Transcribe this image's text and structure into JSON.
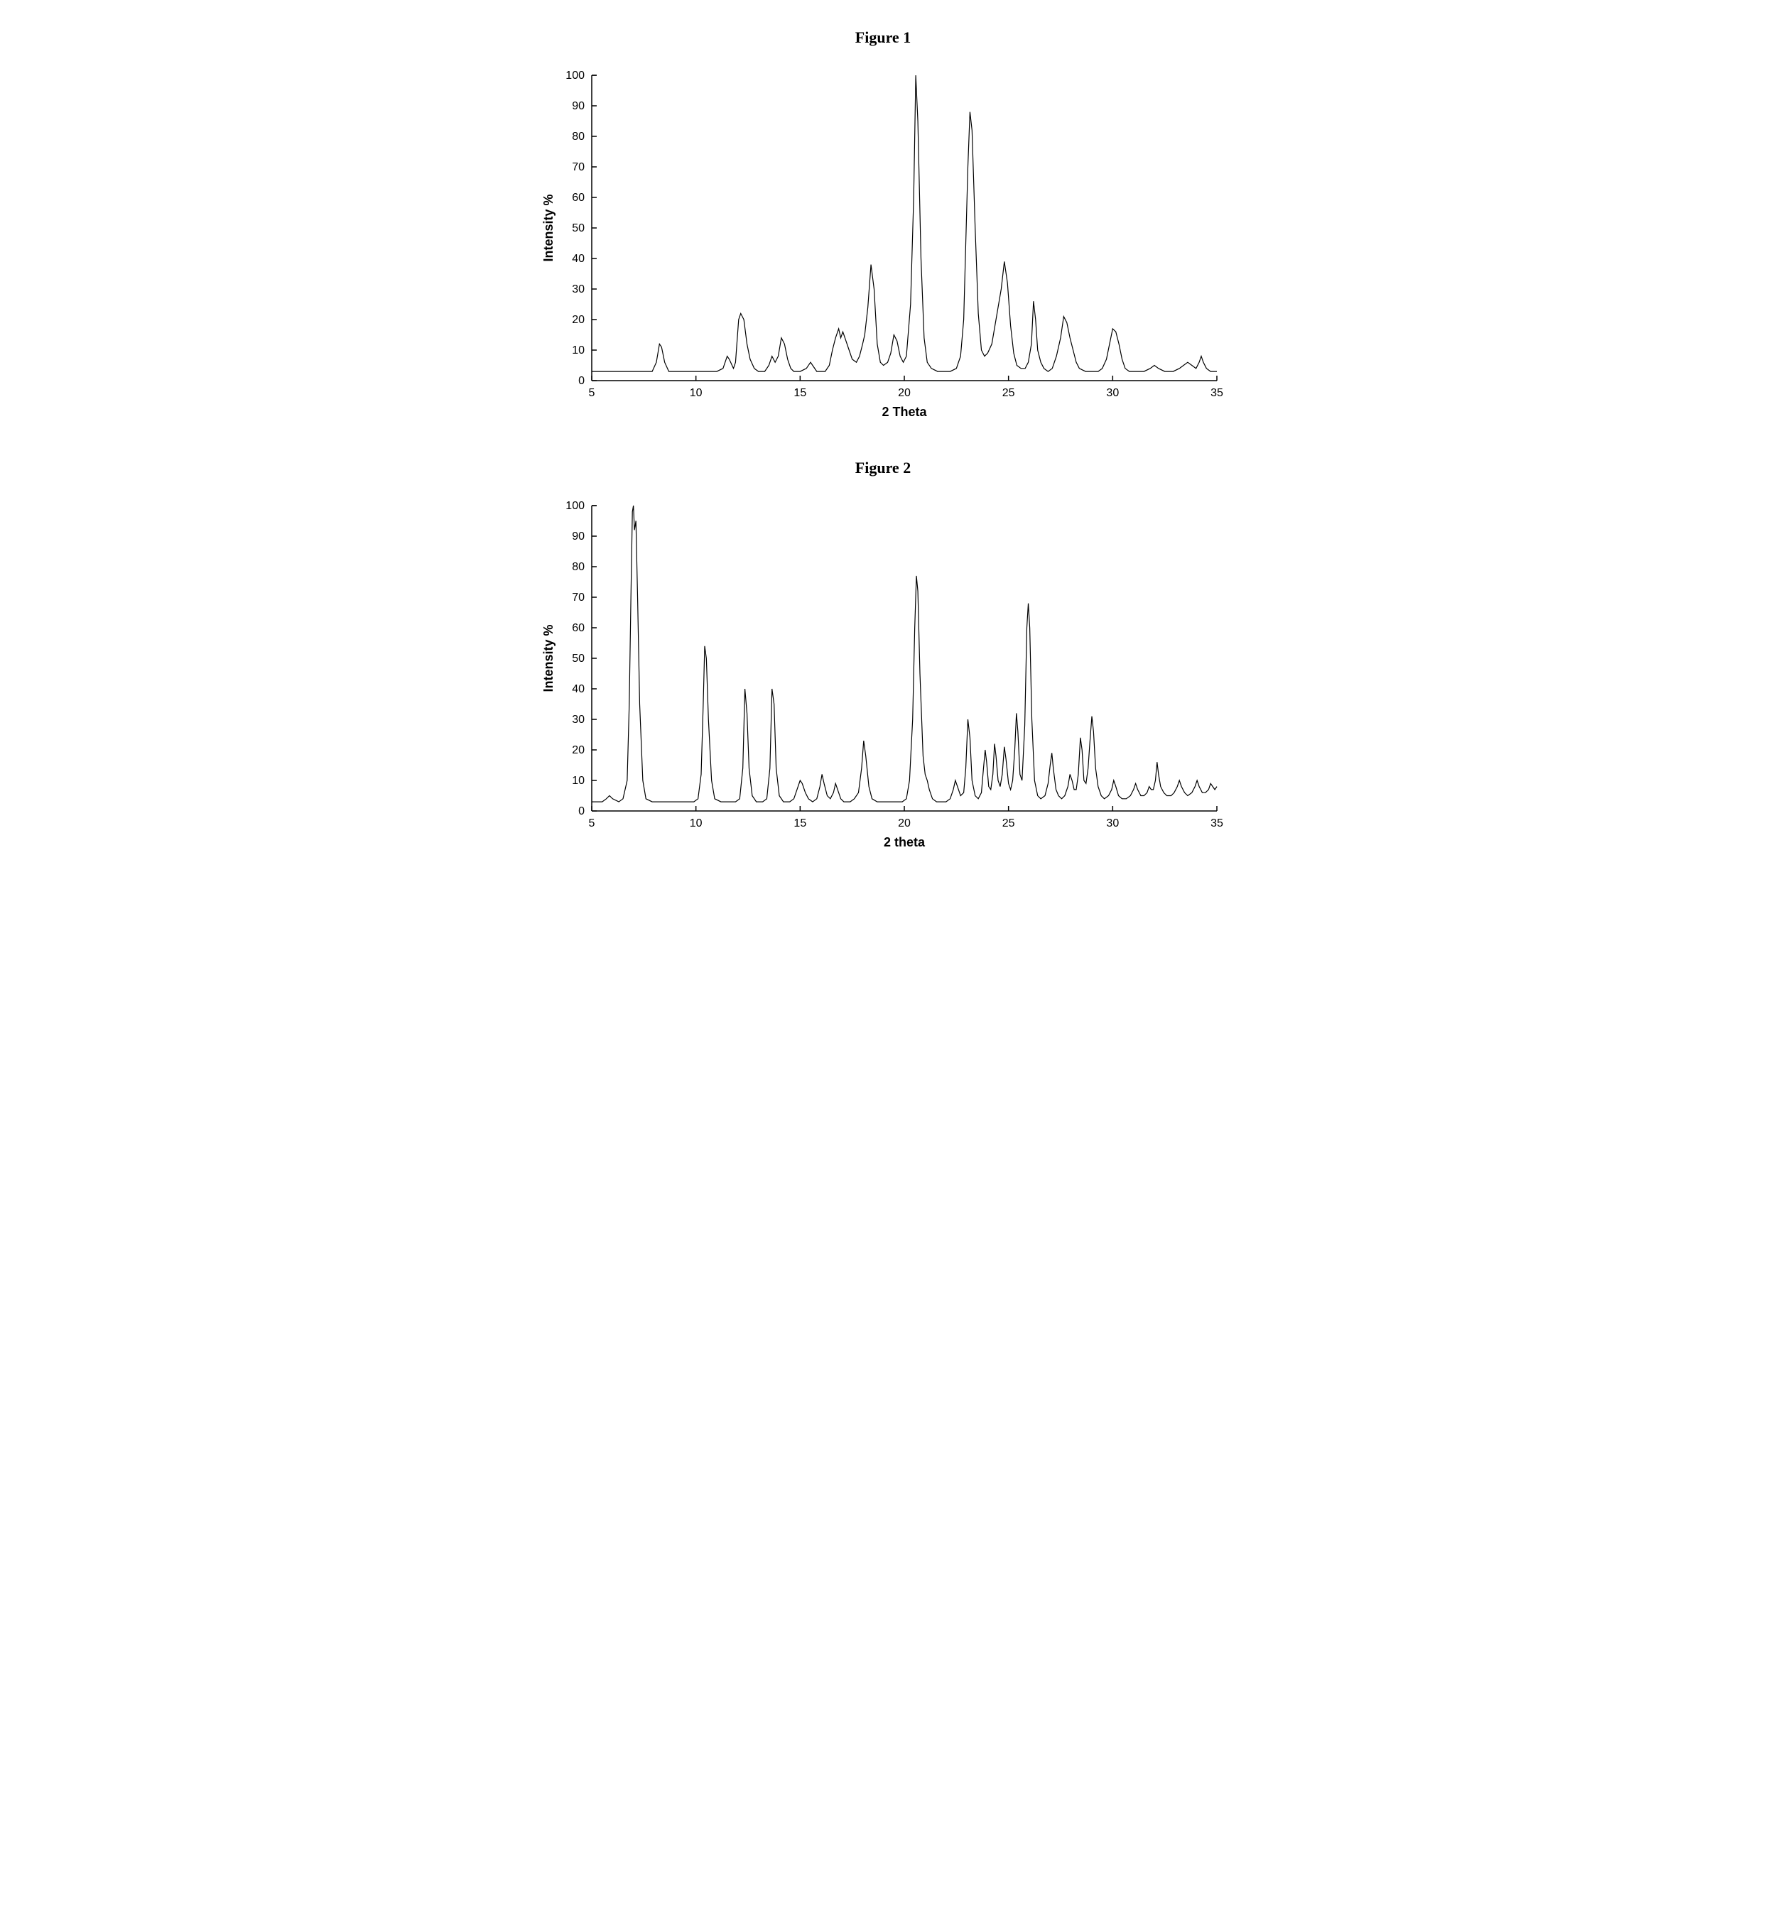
{
  "figures": [
    {
      "title": "Figure 1",
      "type": "line",
      "xlabel": "2 Theta",
      "ylabel": "Intensity %",
      "title_fontsize": 22,
      "label_fontsize": 18,
      "tick_fontsize": 16,
      "xlim": [
        5,
        35
      ],
      "ylim": [
        0,
        100
      ],
      "xtick_step": 5,
      "ytick_step": 10,
      "background_color": "#ffffff",
      "line_color": "#000000",
      "line_width": 1.2,
      "data": [
        [
          5.0,
          3
        ],
        [
          5.5,
          3
        ],
        [
          6.0,
          3
        ],
        [
          6.5,
          3
        ],
        [
          7.0,
          3
        ],
        [
          7.5,
          3
        ],
        [
          7.9,
          3
        ],
        [
          8.1,
          6
        ],
        [
          8.25,
          12
        ],
        [
          8.35,
          11
        ],
        [
          8.5,
          6
        ],
        [
          8.7,
          3
        ],
        [
          9.0,
          3
        ],
        [
          9.5,
          3
        ],
        [
          10.0,
          3
        ],
        [
          10.5,
          3
        ],
        [
          11.0,
          3
        ],
        [
          11.3,
          4
        ],
        [
          11.5,
          8
        ],
        [
          11.6,
          7
        ],
        [
          11.8,
          4
        ],
        [
          11.9,
          6
        ],
        [
          12.05,
          20
        ],
        [
          12.15,
          22
        ],
        [
          12.3,
          20
        ],
        [
          12.45,
          12
        ],
        [
          12.6,
          7
        ],
        [
          12.8,
          4
        ],
        [
          13.0,
          3
        ],
        [
          13.3,
          3
        ],
        [
          13.5,
          5
        ],
        [
          13.65,
          8
        ],
        [
          13.8,
          6
        ],
        [
          13.95,
          8
        ],
        [
          14.1,
          14
        ],
        [
          14.25,
          12
        ],
        [
          14.4,
          7
        ],
        [
          14.55,
          4
        ],
        [
          14.7,
          3
        ],
        [
          15.0,
          3
        ],
        [
          15.3,
          4
        ],
        [
          15.5,
          6
        ],
        [
          15.6,
          5
        ],
        [
          15.8,
          3
        ],
        [
          16.0,
          3
        ],
        [
          16.2,
          3
        ],
        [
          16.4,
          5
        ],
        [
          16.55,
          10
        ],
        [
          16.7,
          14
        ],
        [
          16.85,
          17
        ],
        [
          16.95,
          14
        ],
        [
          17.05,
          16
        ],
        [
          17.2,
          13
        ],
        [
          17.35,
          10
        ],
        [
          17.5,
          7
        ],
        [
          17.7,
          6
        ],
        [
          17.85,
          8
        ],
        [
          18.0,
          12
        ],
        [
          18.1,
          15
        ],
        [
          18.25,
          24
        ],
        [
          18.4,
          38
        ],
        [
          18.55,
          30
        ],
        [
          18.7,
          12
        ],
        [
          18.85,
          6
        ],
        [
          19.0,
          5
        ],
        [
          19.2,
          6
        ],
        [
          19.35,
          9
        ],
        [
          19.5,
          15
        ],
        [
          19.65,
          13
        ],
        [
          19.8,
          8
        ],
        [
          19.95,
          6
        ],
        [
          20.1,
          8
        ],
        [
          20.3,
          25
        ],
        [
          20.45,
          60
        ],
        [
          20.55,
          100
        ],
        [
          20.65,
          85
        ],
        [
          20.8,
          40
        ],
        [
          20.95,
          14
        ],
        [
          21.1,
          6
        ],
        [
          21.3,
          4
        ],
        [
          21.6,
          3
        ],
        [
          21.9,
          3
        ],
        [
          22.2,
          3
        ],
        [
          22.5,
          4
        ],
        [
          22.7,
          8
        ],
        [
          22.85,
          20
        ],
        [
          22.95,
          45
        ],
        [
          23.05,
          70
        ],
        [
          23.15,
          88
        ],
        [
          23.25,
          82
        ],
        [
          23.4,
          50
        ],
        [
          23.55,
          22
        ],
        [
          23.7,
          10
        ],
        [
          23.85,
          8
        ],
        [
          24.0,
          9
        ],
        [
          24.2,
          12
        ],
        [
          24.35,
          18
        ],
        [
          24.5,
          24
        ],
        [
          24.65,
          30
        ],
        [
          24.8,
          39
        ],
        [
          24.95,
          32
        ],
        [
          25.1,
          18
        ],
        [
          25.25,
          9
        ],
        [
          25.4,
          5
        ],
        [
          25.6,
          4
        ],
        [
          25.8,
          4
        ],
        [
          25.95,
          6
        ],
        [
          26.1,
          12
        ],
        [
          26.2,
          26
        ],
        [
          26.3,
          20
        ],
        [
          26.4,
          10
        ],
        [
          26.55,
          6
        ],
        [
          26.7,
          4
        ],
        [
          26.9,
          3
        ],
        [
          27.1,
          4
        ],
        [
          27.3,
          8
        ],
        [
          27.5,
          14
        ],
        [
          27.65,
          21
        ],
        [
          27.8,
          19
        ],
        [
          27.95,
          14
        ],
        [
          28.1,
          10
        ],
        [
          28.25,
          6
        ],
        [
          28.4,
          4
        ],
        [
          28.7,
          3
        ],
        [
          29.0,
          3
        ],
        [
          29.3,
          3
        ],
        [
          29.5,
          4
        ],
        [
          29.7,
          7
        ],
        [
          29.85,
          12
        ],
        [
          30.0,
          17
        ],
        [
          30.15,
          16
        ],
        [
          30.3,
          12
        ],
        [
          30.45,
          7
        ],
        [
          30.6,
          4
        ],
        [
          30.8,
          3
        ],
        [
          31.2,
          3
        ],
        [
          31.5,
          3
        ],
        [
          31.8,
          4
        ],
        [
          32.0,
          5
        ],
        [
          32.2,
          4
        ],
        [
          32.5,
          3
        ],
        [
          32.9,
          3
        ],
        [
          33.2,
          4
        ],
        [
          33.4,
          5
        ],
        [
          33.6,
          6
        ],
        [
          33.8,
          5
        ],
        [
          34.0,
          4
        ],
        [
          34.15,
          6
        ],
        [
          34.25,
          8
        ],
        [
          34.35,
          6
        ],
        [
          34.5,
          4
        ],
        [
          34.7,
          3
        ],
        [
          35.0,
          3
        ]
      ]
    },
    {
      "title": "Figure 2",
      "type": "line",
      "xlabel": "2 theta",
      "ylabel": "Intensity %",
      "title_fontsize": 22,
      "label_fontsize": 18,
      "tick_fontsize": 16,
      "xlim": [
        5,
        35
      ],
      "ylim": [
        0,
        100
      ],
      "xtick_step": 5,
      "ytick_step": 10,
      "background_color": "#ffffff",
      "line_color": "#000000",
      "line_width": 1.2,
      "data": [
        [
          5.0,
          3
        ],
        [
          5.3,
          3
        ],
        [
          5.5,
          3
        ],
        [
          5.7,
          4
        ],
        [
          5.85,
          5
        ],
        [
          6.0,
          4
        ],
        [
          6.3,
          3
        ],
        [
          6.5,
          4
        ],
        [
          6.7,
          10
        ],
        [
          6.8,
          35
        ],
        [
          6.88,
          70
        ],
        [
          6.95,
          98
        ],
        [
          7.0,
          100
        ],
        [
          7.05,
          92
        ],
        [
          7.12,
          95
        ],
        [
          7.2,
          70
        ],
        [
          7.3,
          35
        ],
        [
          7.45,
          10
        ],
        [
          7.6,
          4
        ],
        [
          7.9,
          3
        ],
        [
          8.3,
          3
        ],
        [
          8.7,
          3
        ],
        [
          9.1,
          3
        ],
        [
          9.5,
          3
        ],
        [
          9.9,
          3
        ],
        [
          10.1,
          4
        ],
        [
          10.25,
          12
        ],
        [
          10.35,
          35
        ],
        [
          10.42,
          54
        ],
        [
          10.5,
          50
        ],
        [
          10.6,
          30
        ],
        [
          10.75,
          10
        ],
        [
          10.9,
          4
        ],
        [
          11.2,
          3
        ],
        [
          11.6,
          3
        ],
        [
          11.9,
          3
        ],
        [
          12.1,
          4
        ],
        [
          12.25,
          14
        ],
        [
          12.35,
          40
        ],
        [
          12.45,
          32
        ],
        [
          12.55,
          14
        ],
        [
          12.7,
          5
        ],
        [
          12.9,
          3
        ],
        [
          13.2,
          3
        ],
        [
          13.4,
          4
        ],
        [
          13.55,
          14
        ],
        [
          13.65,
          40
        ],
        [
          13.75,
          35
        ],
        [
          13.85,
          14
        ],
        [
          14.0,
          5
        ],
        [
          14.2,
          3
        ],
        [
          14.5,
          3
        ],
        [
          14.7,
          4
        ],
        [
          14.85,
          7
        ],
        [
          15.0,
          10
        ],
        [
          15.1,
          9
        ],
        [
          15.25,
          6
        ],
        [
          15.4,
          4
        ],
        [
          15.6,
          3
        ],
        [
          15.8,
          4
        ],
        [
          15.95,
          8
        ],
        [
          16.05,
          12
        ],
        [
          16.15,
          9
        ],
        [
          16.3,
          5
        ],
        [
          16.45,
          4
        ],
        [
          16.6,
          6
        ],
        [
          16.7,
          9
        ],
        [
          16.8,
          7
        ],
        [
          16.95,
          4
        ],
        [
          17.1,
          3
        ],
        [
          17.4,
          3
        ],
        [
          17.6,
          4
        ],
        [
          17.8,
          6
        ],
        [
          17.95,
          14
        ],
        [
          18.05,
          23
        ],
        [
          18.15,
          18
        ],
        [
          18.3,
          8
        ],
        [
          18.45,
          4
        ],
        [
          18.7,
          3
        ],
        [
          19.0,
          3
        ],
        [
          19.3,
          3
        ],
        [
          19.6,
          3
        ],
        [
          19.9,
          3
        ],
        [
          20.1,
          4
        ],
        [
          20.25,
          10
        ],
        [
          20.4,
          30
        ],
        [
          20.5,
          60
        ],
        [
          20.58,
          77
        ],
        [
          20.65,
          72
        ],
        [
          20.75,
          45
        ],
        [
          20.9,
          18
        ],
        [
          21.0,
          12
        ],
        [
          21.1,
          10
        ],
        [
          21.2,
          7
        ],
        [
          21.35,
          4
        ],
        [
          21.55,
          3
        ],
        [
          21.8,
          3
        ],
        [
          22.0,
          3
        ],
        [
          22.2,
          4
        ],
        [
          22.35,
          7
        ],
        [
          22.45,
          10
        ],
        [
          22.55,
          8
        ],
        [
          22.7,
          5
        ],
        [
          22.85,
          6
        ],
        [
          22.95,
          14
        ],
        [
          23.05,
          30
        ],
        [
          23.15,
          24
        ],
        [
          23.25,
          10
        ],
        [
          23.4,
          5
        ],
        [
          23.55,
          4
        ],
        [
          23.7,
          6
        ],
        [
          23.8,
          14
        ],
        [
          23.88,
          20
        ],
        [
          23.95,
          16
        ],
        [
          24.05,
          8
        ],
        [
          24.15,
          7
        ],
        [
          24.25,
          12
        ],
        [
          24.33,
          22
        ],
        [
          24.4,
          18
        ],
        [
          24.5,
          10
        ],
        [
          24.6,
          8
        ],
        [
          24.7,
          12
        ],
        [
          24.8,
          21
        ],
        [
          24.88,
          17
        ],
        [
          25.0,
          9
        ],
        [
          25.1,
          7
        ],
        [
          25.2,
          10
        ],
        [
          25.3,
          20
        ],
        [
          25.38,
          32
        ],
        [
          25.45,
          26
        ],
        [
          25.55,
          12
        ],
        [
          25.65,
          10
        ],
        [
          25.78,
          28
        ],
        [
          25.88,
          60
        ],
        [
          25.95,
          68
        ],
        [
          26.02,
          60
        ],
        [
          26.12,
          30
        ],
        [
          26.25,
          10
        ],
        [
          26.4,
          5
        ],
        [
          26.55,
          4
        ],
        [
          26.75,
          5
        ],
        [
          26.9,
          9
        ],
        [
          27.0,
          15
        ],
        [
          27.08,
          19
        ],
        [
          27.15,
          14
        ],
        [
          27.28,
          7
        ],
        [
          27.4,
          5
        ],
        [
          27.55,
          4
        ],
        [
          27.7,
          5
        ],
        [
          27.85,
          8
        ],
        [
          27.95,
          12
        ],
        [
          28.05,
          10
        ],
        [
          28.15,
          7
        ],
        [
          28.25,
          7
        ],
        [
          28.35,
          12
        ],
        [
          28.45,
          24
        ],
        [
          28.53,
          20
        ],
        [
          28.62,
          10
        ],
        [
          28.72,
          9
        ],
        [
          28.82,
          14
        ],
        [
          28.9,
          22
        ],
        [
          29.0,
          31
        ],
        [
          29.08,
          26
        ],
        [
          29.18,
          14
        ],
        [
          29.3,
          8
        ],
        [
          29.45,
          5
        ],
        [
          29.6,
          4
        ],
        [
          29.8,
          5
        ],
        [
          29.95,
          7
        ],
        [
          30.05,
          10
        ],
        [
          30.15,
          8
        ],
        [
          30.28,
          5
        ],
        [
          30.45,
          4
        ],
        [
          30.65,
          4
        ],
        [
          30.85,
          5
        ],
        [
          31.0,
          7
        ],
        [
          31.1,
          9
        ],
        [
          31.2,
          7
        ],
        [
          31.35,
          5
        ],
        [
          31.5,
          5
        ],
        [
          31.65,
          6
        ],
        [
          31.75,
          8
        ],
        [
          31.85,
          7
        ],
        [
          31.95,
          7
        ],
        [
          32.05,
          10
        ],
        [
          32.13,
          16
        ],
        [
          32.2,
          12
        ],
        [
          32.3,
          8
        ],
        [
          32.45,
          6
        ],
        [
          32.6,
          5
        ],
        [
          32.8,
          5
        ],
        [
          32.95,
          6
        ],
        [
          33.1,
          8
        ],
        [
          33.2,
          10
        ],
        [
          33.3,
          8
        ],
        [
          33.45,
          6
        ],
        [
          33.6,
          5
        ],
        [
          33.8,
          6
        ],
        [
          33.95,
          8
        ],
        [
          34.05,
          10
        ],
        [
          34.15,
          8
        ],
        [
          34.3,
          6
        ],
        [
          34.45,
          6
        ],
        [
          34.6,
          7
        ],
        [
          34.7,
          9
        ],
        [
          34.8,
          8
        ],
        [
          34.9,
          7
        ],
        [
          35.0,
          8
        ]
      ]
    }
  ]
}
